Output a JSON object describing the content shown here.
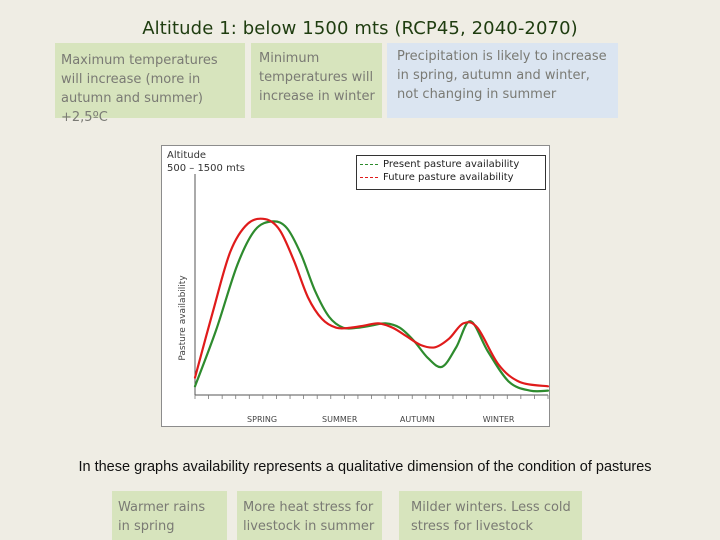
{
  "title": "Altitude 1: below 1500 mts (RCP45, 2040-2070)",
  "boxes": {
    "max_temp": "Maximum temperatures will increase (more in autumn and summer) +2,5ºC",
    "min_temp": "Minimum temperatures will increase in winter",
    "precipitation": "Precipitation is likely to increase in spring, autumn and winter, not changing in summer"
  },
  "note": "In these graphs availability represents a qualitative dimension of the condition of pastures",
  "footer": {
    "spring": "Warmer rains in spring",
    "summer": "More heat stress for livestock in summer",
    "winter": "Milder winters. Less cold stress for livestock"
  },
  "colors": {
    "present": "#2e8b2e",
    "future": "#e01b1b",
    "green_box": "#d7e4bd",
    "blue_box": "#dbe5f1"
  },
  "chart_data": {
    "type": "line",
    "title": "",
    "panel_label": [
      "Altitude",
      "500 – 1500 mts"
    ],
    "ylabel": "Pasture availability",
    "xlabel": "",
    "ylim": [
      0,
      1
    ],
    "xlim": [
      0,
      1
    ],
    "grid": false,
    "legend_position": "top-right",
    "x_ticks": [
      {
        "x": 0.19,
        "label": "SPRING"
      },
      {
        "x": 0.41,
        "label": "SUMMER"
      },
      {
        "x": 0.63,
        "label": "AUTUMN"
      },
      {
        "x": 0.86,
        "label": "WINTER"
      }
    ],
    "series": [
      {
        "name": "Present pasture availability",
        "color": "#2e8b2e",
        "style": "dashed",
        "x": [
          0.0,
          0.06,
          0.12,
          0.17,
          0.22,
          0.26,
          0.3,
          0.34,
          0.38,
          0.42,
          0.46,
          0.5,
          0.54,
          0.58,
          0.62,
          0.66,
          0.7,
          0.74,
          0.78,
          0.83,
          0.89,
          0.95,
          1.0
        ],
        "y": [
          0.04,
          0.3,
          0.6,
          0.76,
          0.8,
          0.77,
          0.65,
          0.48,
          0.36,
          0.31,
          0.31,
          0.32,
          0.33,
          0.31,
          0.25,
          0.17,
          0.13,
          0.22,
          0.34,
          0.2,
          0.06,
          0.02,
          0.02
        ]
      },
      {
        "name": "Future pasture availability",
        "color": "#e01b1b",
        "style": "dashed",
        "x": [
          0.0,
          0.05,
          0.1,
          0.15,
          0.2,
          0.24,
          0.28,
          0.32,
          0.36,
          0.4,
          0.44,
          0.48,
          0.52,
          0.56,
          0.6,
          0.64,
          0.68,
          0.72,
          0.76,
          0.8,
          0.86,
          0.92,
          1.0
        ],
        "y": [
          0.08,
          0.38,
          0.66,
          0.79,
          0.81,
          0.76,
          0.62,
          0.45,
          0.35,
          0.31,
          0.31,
          0.32,
          0.33,
          0.31,
          0.27,
          0.23,
          0.22,
          0.26,
          0.33,
          0.31,
          0.14,
          0.06,
          0.04
        ]
      }
    ]
  }
}
